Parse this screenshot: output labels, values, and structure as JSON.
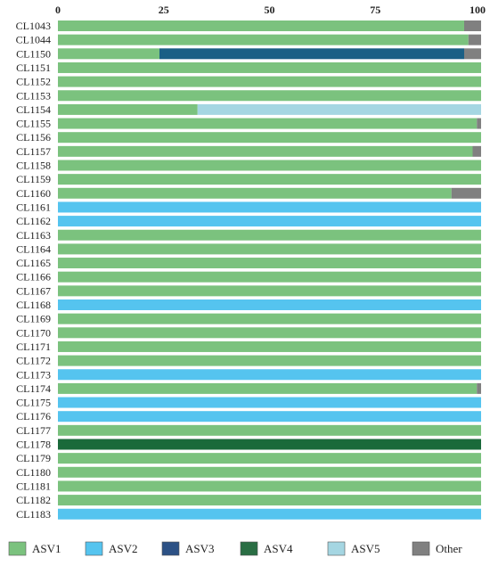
{
  "chart_data": {
    "type": "bar",
    "orientation": "horizontal",
    "stacked": true,
    "xlim": [
      0,
      100
    ],
    "xticks": [
      "0",
      "25",
      "50",
      "75",
      "100"
    ],
    "grid": false,
    "legend_position": "bottom",
    "categories": [
      "CL1043",
      "CL1044",
      "CL1150",
      "CL1151",
      "CL1152",
      "CL1153",
      "CL1154",
      "CL1155",
      "CL1156",
      "CL1157",
      "CL1158",
      "CL1159",
      "CL1160",
      "CL1161",
      "CL1162",
      "CL1163",
      "CL1164",
      "CL1165",
      "CL1166",
      "CL1167",
      "CL1168",
      "CL1169",
      "CL1170",
      "CL1171",
      "CL1172",
      "CL1173",
      "CL1174",
      "CL1175",
      "CL1176",
      "CL1177",
      "CL1178",
      "CL1179",
      "CL1180",
      "CL1181",
      "CL1182",
      "CL1183"
    ],
    "series": [
      {
        "name": "ASV1",
        "color": "#7bc27e",
        "values": [
          96,
          97,
          24,
          100,
          100,
          100,
          33,
          99,
          100,
          98,
          100,
          100,
          93,
          0,
          0,
          100,
          100,
          100,
          100,
          100,
          0,
          100,
          100,
          100,
          100,
          0,
          99,
          0,
          0,
          100,
          0,
          100,
          100,
          100,
          100,
          0
        ]
      },
      {
        "name": "ASV2",
        "color": "#55c4ef",
        "values": [
          0,
          0,
          0,
          0,
          0,
          0,
          0,
          0,
          0,
          0,
          0,
          0,
          0,
          100,
          100,
          0,
          0,
          0,
          0,
          0,
          100,
          0,
          0,
          0,
          0,
          100,
          0,
          100,
          100,
          0,
          0,
          0,
          0,
          0,
          0,
          100
        ]
      },
      {
        "name": "ASV3",
        "color": "#1a5f85",
        "values": [
          0,
          0,
          72,
          0,
          0,
          0,
          0,
          0,
          0,
          0,
          0,
          0,
          0,
          0,
          0,
          0,
          0,
          0,
          0,
          0,
          0,
          0,
          0,
          0,
          0,
          0,
          0,
          0,
          0,
          0,
          0,
          0,
          0,
          0,
          0,
          0
        ]
      },
      {
        "name": "ASV4",
        "color": "#1a6a3a",
        "values": [
          0,
          0,
          0,
          0,
          0,
          0,
          0,
          0,
          0,
          0,
          0,
          0,
          0,
          0,
          0,
          0,
          0,
          0,
          0,
          0,
          0,
          0,
          0,
          0,
          0,
          0,
          0,
          0,
          0,
          0,
          100,
          0,
          0,
          0,
          0,
          0
        ]
      },
      {
        "name": "ASV5",
        "color": "#a5d6e2",
        "values": [
          0,
          0,
          0,
          0,
          0,
          0,
          67,
          0,
          0,
          0,
          0,
          0,
          0,
          0,
          0,
          0,
          0,
          0,
          0,
          0,
          0,
          0,
          0,
          0,
          0,
          0,
          0,
          0,
          0,
          0,
          0,
          0,
          0,
          0,
          0,
          0
        ]
      },
      {
        "name": "Other",
        "color": "#808080",
        "values": [
          4,
          3,
          4,
          0,
          0,
          0,
          0,
          1,
          0,
          2,
          0,
          0,
          7,
          0,
          0,
          0,
          0,
          0,
          0,
          0,
          0,
          0,
          0,
          0,
          0,
          0,
          1,
          0,
          0,
          0,
          0,
          0,
          0,
          0,
          0,
          0
        ]
      }
    ],
    "legend_colors": [
      "#7bc27e",
      "#55c4ef",
      "#2c5185",
      "#2a6e44",
      "#a5d6e2",
      "#808080"
    ]
  }
}
